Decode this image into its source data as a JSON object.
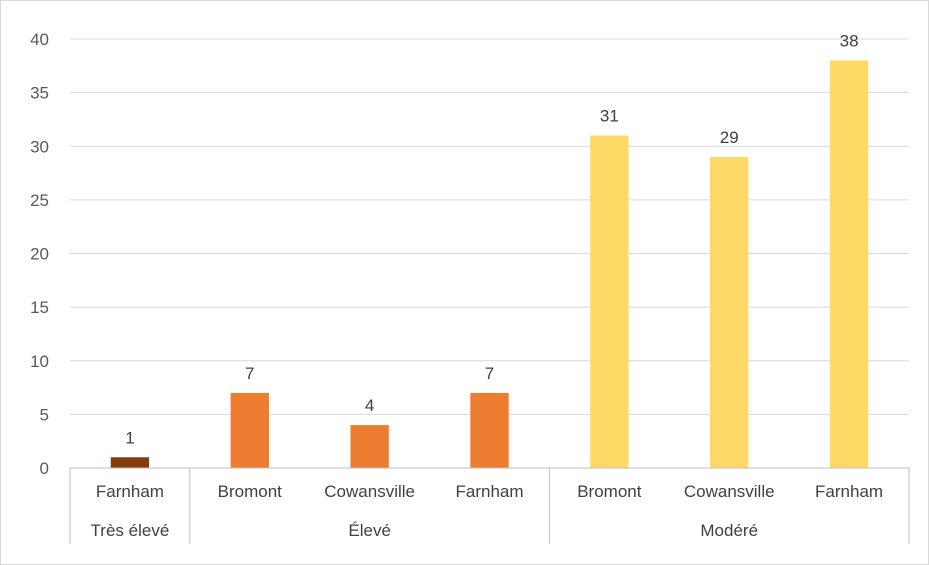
{
  "chart_data": {
    "type": "bar",
    "ylim": [
      0,
      40
    ],
    "yticks": [
      0,
      5,
      10,
      15,
      20,
      25,
      30,
      35,
      40
    ],
    "grid": true,
    "data_labels": true,
    "groups": [
      {
        "label": "Très élevé",
        "color": "#843c0c",
        "items": [
          {
            "category": "Farnham",
            "value": 1
          }
        ]
      },
      {
        "label": "Élevé",
        "color": "#ed7d31",
        "items": [
          {
            "category": "Bromont",
            "value": 7
          },
          {
            "category": "Cowansville",
            "value": 4
          },
          {
            "category": "Farnham",
            "value": 7
          }
        ]
      },
      {
        "label": "Modéré",
        "color": "#ffd966",
        "items": [
          {
            "category": "Bromont",
            "value": 31
          },
          {
            "category": "Cowansville",
            "value": 29
          },
          {
            "category": "Farnham",
            "value": 38
          }
        ]
      }
    ]
  }
}
